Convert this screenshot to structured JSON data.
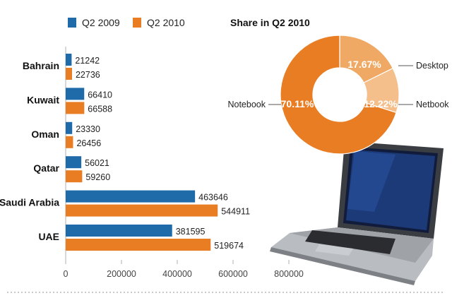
{
  "colors": {
    "series_2009": "#1f6aa8",
    "series_2010": "#e97d23",
    "pie_notebook": "#e97d23",
    "pie_desktop": "#f0a964",
    "pie_netbook": "#f4bf8a",
    "axis": "#b0b0b0"
  },
  "chart_data": [
    {
      "type": "bar",
      "orientation": "horizontal",
      "categories": [
        "Bahrain",
        "Kuwait",
        "Oman",
        "Qatar",
        "Saudi Arabia",
        "UAE"
      ],
      "series": [
        {
          "name": "Q2 2009",
          "values": [
            21242,
            66410,
            23330,
            56021,
            463646,
            381595
          ]
        },
        {
          "name": "Q2 2010",
          "values": [
            22736,
            66588,
            26456,
            59260,
            544911,
            519674
          ]
        }
      ],
      "xlim": [
        0,
        800000
      ],
      "xticks": [
        "0",
        "200000",
        "400000",
        "600000",
        "800000"
      ],
      "legend": "top-left"
    },
    {
      "type": "pie",
      "title": "Share in Q2 2010",
      "style": "donut",
      "slices": [
        {
          "label": "Notebook",
          "value": 70.11,
          "pct_label": "70.11%"
        },
        {
          "label": "Netbook",
          "value": 12.22,
          "pct_label": "12.22%"
        },
        {
          "label": "Desktop",
          "value": 17.67,
          "pct_label": "17.67%"
        }
      ]
    }
  ]
}
